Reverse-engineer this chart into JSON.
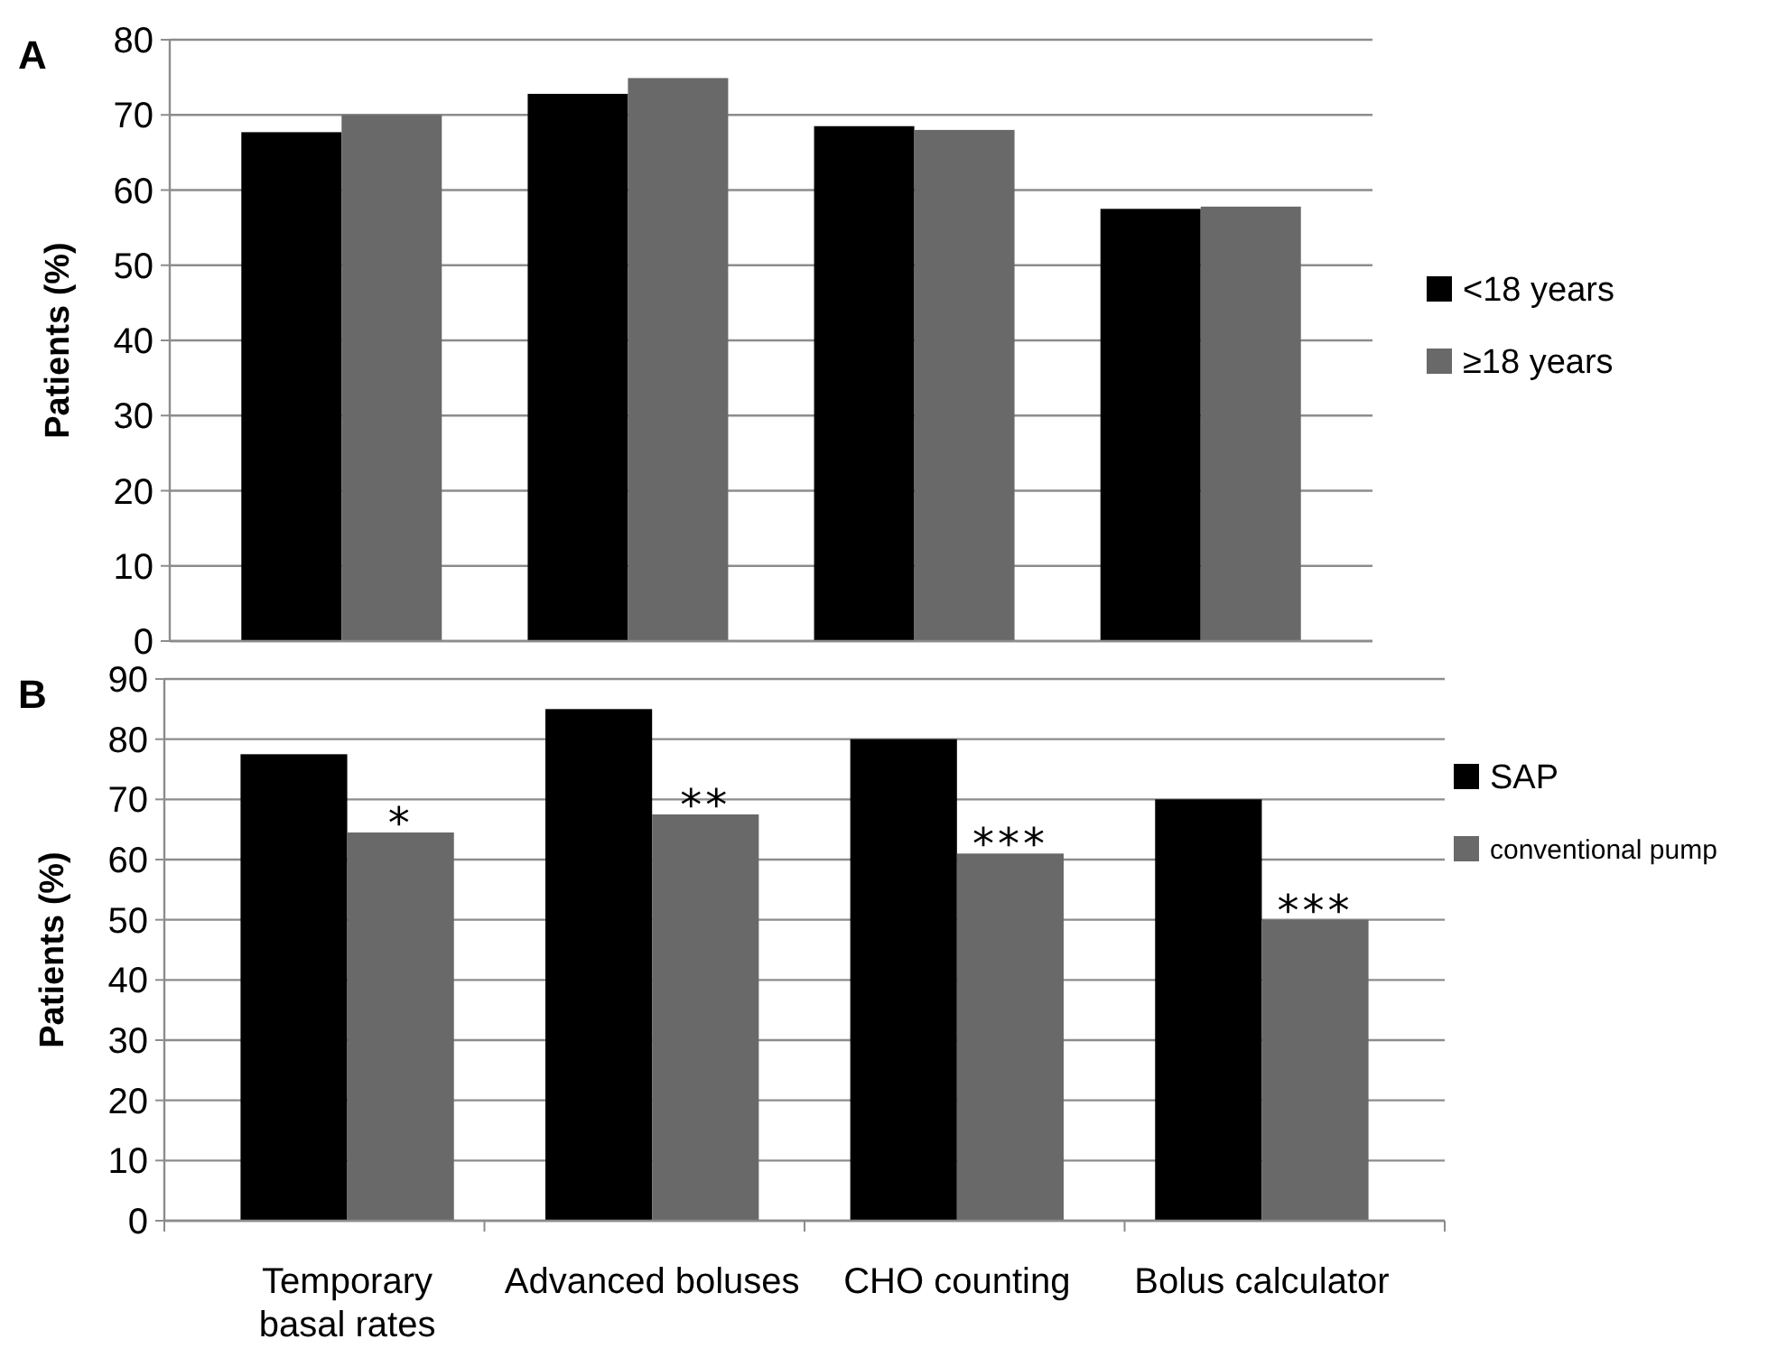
{
  "chart_data": [
    {
      "type": "bar",
      "title": "A",
      "ylabel": "Patients (%)",
      "categories": [
        null,
        null,
        null,
        null
      ],
      "series": [
        {
          "name": "<18 years",
          "color": "#000000",
          "values": [
            67.7,
            72.8,
            68.5,
            57.5
          ]
        },
        {
          "name": "≥18 years",
          "color": "#696969",
          "values": [
            70,
            74.9,
            68,
            57.8
          ]
        }
      ],
      "ylim": [
        0,
        80
      ],
      "yticks": [
        0,
        10,
        20,
        30,
        40,
        50,
        60,
        70,
        80
      ],
      "grid": "y",
      "legend": "right",
      "tick_labels": "y"
    },
    {
      "type": "bar",
      "title": "B",
      "ylabel": "Patients (%)",
      "categories": [
        "Temporary basal rates",
        "Advanced boluses",
        "CHO counting",
        "Bolus calculator"
      ],
      "series": [
        {
          "name": "SAP",
          "color": "#000000",
          "values": [
            77.5,
            85,
            80,
            70
          ]
        },
        {
          "name": "conventional pump",
          "color": "#696969",
          "values": [
            64.5,
            67.5,
            61,
            50
          ]
        }
      ],
      "ylim": [
        0,
        90
      ],
      "yticks": [
        0,
        10,
        20,
        30,
        40,
        50,
        60,
        70,
        80,
        90
      ],
      "grid": "y",
      "legend": "right",
      "annotations": [
        {
          "text": "*",
          "x": "Temporary basal rates",
          "y": 64.5
        },
        {
          "text": "**",
          "x": "Advanced boluses",
          "y": 67.5
        },
        {
          "text": "***",
          "x": "CHO counting",
          "y": 61
        },
        {
          "text": "***",
          "x": "Bolus calculator",
          "y": 50
        }
      ]
    }
  ]
}
